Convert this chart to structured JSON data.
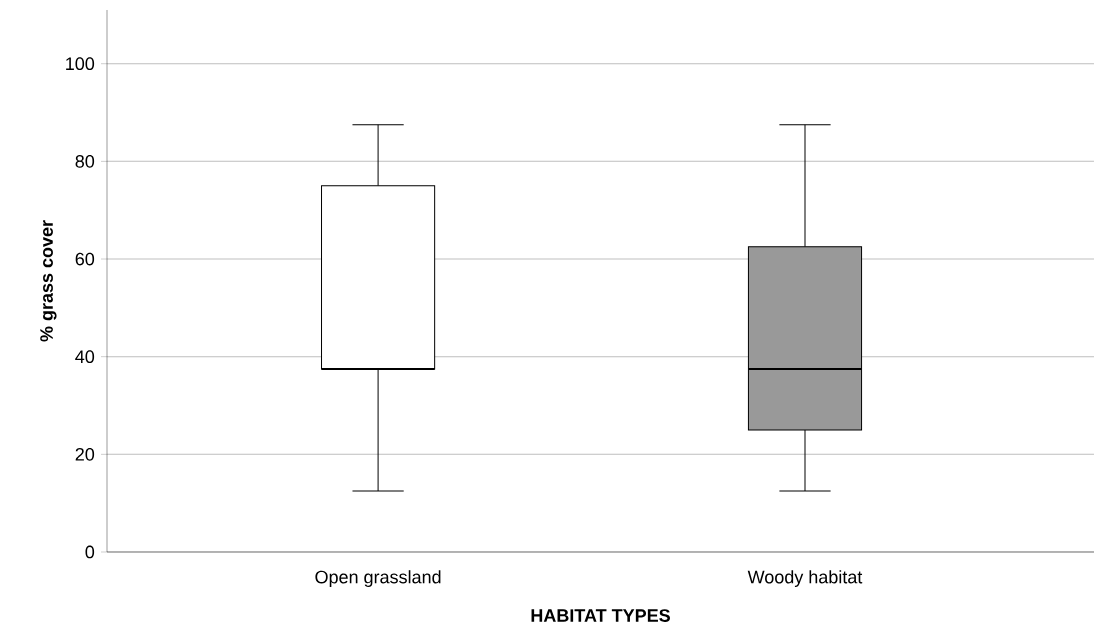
{
  "chart_data": {
    "type": "box",
    "xlabel": "HABITAT TYPES",
    "ylabel": "% grass cover",
    "categories": [
      "Open grassland",
      "Woody habitat"
    ],
    "boxes": [
      {
        "low": 12.5,
        "q1": 37.5,
        "median": 37.5,
        "q3": 75,
        "high": 87.5
      },
      {
        "low": 12.5,
        "q1": 25,
        "median": 37.5,
        "q3": 62.5,
        "high": 87.5
      }
    ],
    "colors": [
      "#ffffff",
      "#999999"
    ],
    "ylim": [
      0,
      111
    ],
    "yticks": [
      0,
      20,
      40,
      60,
      80,
      100
    ],
    "grid": "y"
  }
}
